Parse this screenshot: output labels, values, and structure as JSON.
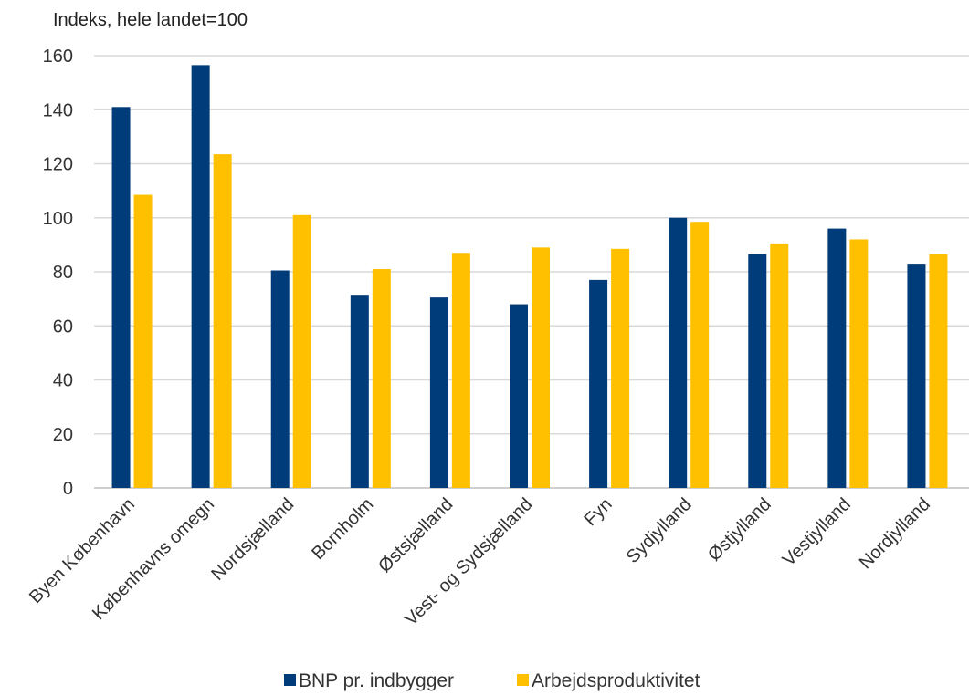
{
  "chart_data": {
    "type": "bar",
    "ylabel": "Indeks, hele landet=100",
    "ylim": [
      0,
      160
    ],
    "yticks": [
      0,
      20,
      40,
      60,
      80,
      100,
      120,
      140,
      160
    ],
    "grid": true,
    "legend_position": "bottom",
    "categories": [
      "Byen København",
      "Københavns omegn",
      "Nordsjælland",
      "Bornholm",
      "Østsjælland",
      "Vest- og Sydsjælland",
      "Fyn",
      "Sydjylland",
      "Østjylland",
      "Vestjylland",
      "Nordjylland"
    ],
    "series": [
      {
        "name": "BNP pr. indbygger",
        "color": "#003b7a",
        "values": [
          141,
          156.5,
          80.5,
          71.5,
          70.5,
          68,
          77,
          100,
          86.5,
          96,
          83
        ]
      },
      {
        "name": "Arbejdsproduktivitet",
        "color": "#ffc000",
        "values": [
          108.5,
          123.5,
          101,
          81,
          87,
          89,
          88.5,
          98.5,
          90.5,
          92,
          86.5
        ]
      }
    ]
  }
}
